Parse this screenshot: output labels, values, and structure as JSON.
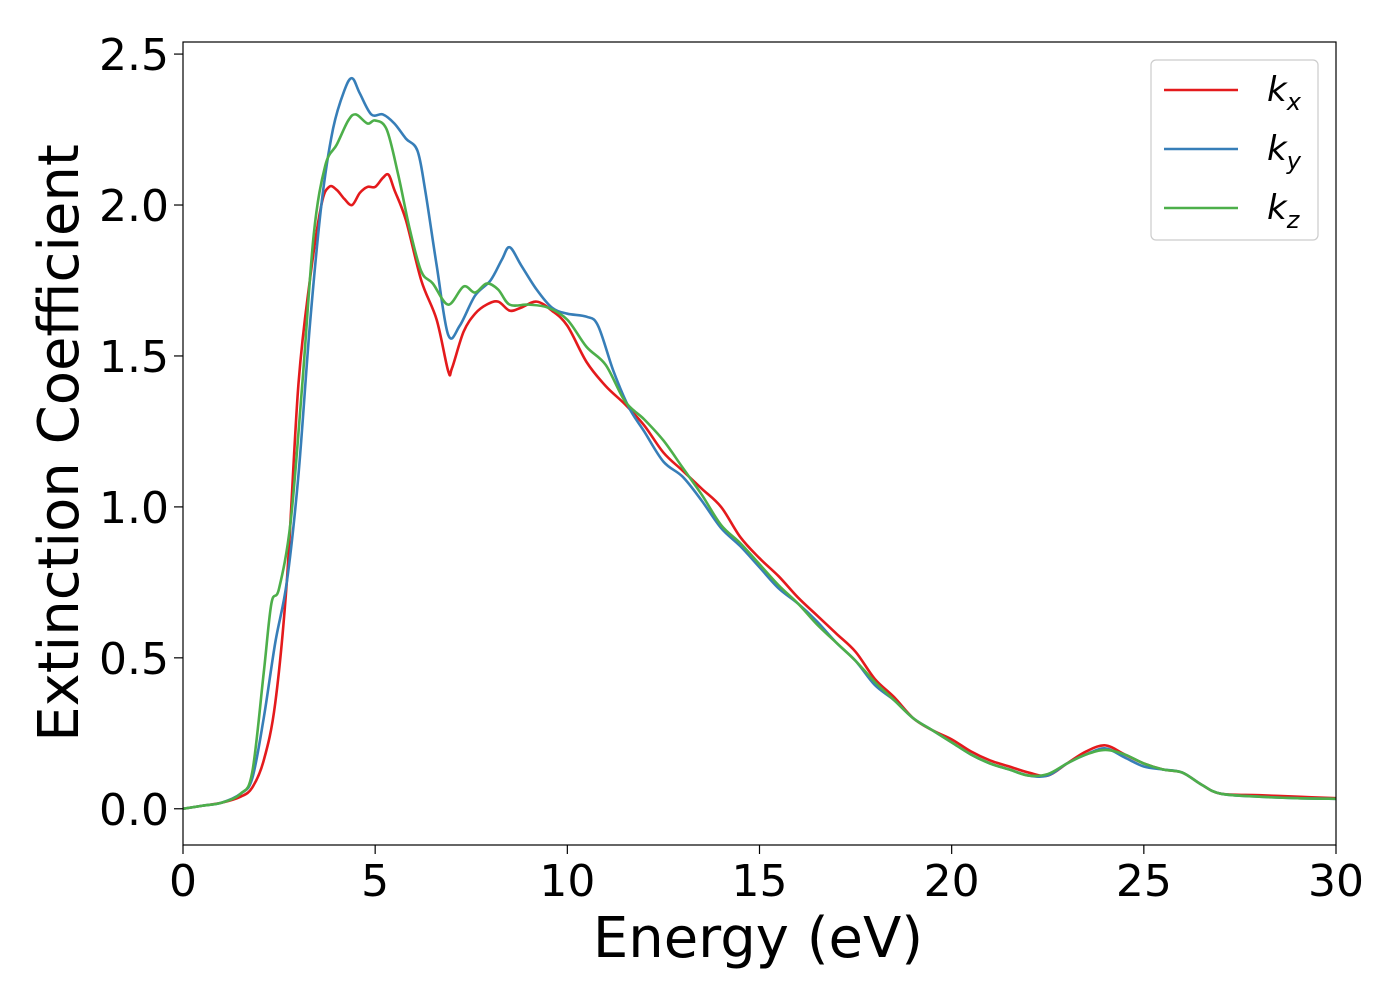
{
  "chart_data": {
    "type": "line",
    "title": "",
    "xlabel": "Energy (eV)",
    "ylabel": "Extinction Coefficient",
    "xlim": [
      0,
      30
    ],
    "ylim": [
      -0.12,
      2.54
    ],
    "xticks": [
      0,
      5,
      10,
      15,
      20,
      25,
      30
    ],
    "xtick_labels": [
      "0",
      "5",
      "10",
      "15",
      "20",
      "25",
      "30"
    ],
    "yticks": [
      0.0,
      0.5,
      1.0,
      1.5,
      2.0,
      2.5
    ],
    "ytick_labels": [
      "0.0",
      "0.5",
      "1.0",
      "1.5",
      "2.0",
      "2.5"
    ],
    "grid": false,
    "legend_position": "top-right",
    "series": [
      {
        "name": "k_x",
        "label_main": "k",
        "label_sub": "x",
        "color": "#e41a1c",
        "points": [
          [
            0,
            0.0
          ],
          [
            0.5,
            0.01
          ],
          [
            1,
            0.02
          ],
          [
            1.5,
            0.04
          ],
          [
            1.8,
            0.07
          ],
          [
            2.1,
            0.16
          ],
          [
            2.4,
            0.35
          ],
          [
            2.7,
            0.75
          ],
          [
            3.0,
            1.4
          ],
          [
            3.3,
            1.75
          ],
          [
            3.6,
            2.0
          ],
          [
            3.8,
            2.06
          ],
          [
            4.0,
            2.05
          ],
          [
            4.2,
            2.02
          ],
          [
            4.4,
            2.0
          ],
          [
            4.6,
            2.04
          ],
          [
            4.8,
            2.06
          ],
          [
            5.0,
            2.06
          ],
          [
            5.2,
            2.09
          ],
          [
            5.35,
            2.1
          ],
          [
            5.5,
            2.05
          ],
          [
            5.8,
            1.95
          ],
          [
            6.2,
            1.75
          ],
          [
            6.6,
            1.62
          ],
          [
            6.9,
            1.45
          ],
          [
            7.0,
            1.46
          ],
          [
            7.3,
            1.58
          ],
          [
            7.6,
            1.64
          ],
          [
            7.9,
            1.67
          ],
          [
            8.2,
            1.68
          ],
          [
            8.5,
            1.65
          ],
          [
            8.8,
            1.66
          ],
          [
            9.2,
            1.68
          ],
          [
            9.6,
            1.65
          ],
          [
            10.0,
            1.6
          ],
          [
            10.5,
            1.48
          ],
          [
            11.0,
            1.4
          ],
          [
            11.5,
            1.34
          ],
          [
            12.0,
            1.27
          ],
          [
            12.5,
            1.18
          ],
          [
            13.0,
            1.12
          ],
          [
            13.5,
            1.06
          ],
          [
            14.0,
            1.0
          ],
          [
            14.5,
            0.9
          ],
          [
            15.0,
            0.83
          ],
          [
            15.5,
            0.77
          ],
          [
            16.0,
            0.7
          ],
          [
            16.5,
            0.64
          ],
          [
            17.0,
            0.58
          ],
          [
            17.5,
            0.52
          ],
          [
            18.0,
            0.43
          ],
          [
            18.5,
            0.37
          ],
          [
            19.0,
            0.3
          ],
          [
            19.5,
            0.26
          ],
          [
            20.0,
            0.23
          ],
          [
            20.5,
            0.19
          ],
          [
            21.0,
            0.16
          ],
          [
            21.5,
            0.14
          ],
          [
            22.0,
            0.12
          ],
          [
            22.5,
            0.11
          ],
          [
            23.0,
            0.15
          ],
          [
            23.5,
            0.19
          ],
          [
            24.0,
            0.21
          ],
          [
            24.5,
            0.18
          ],
          [
            25.0,
            0.15
          ],
          [
            25.5,
            0.13
          ],
          [
            26.0,
            0.12
          ],
          [
            26.5,
            0.08
          ],
          [
            27.0,
            0.05
          ],
          [
            28.0,
            0.045
          ],
          [
            29.0,
            0.04
          ],
          [
            30.0,
            0.035
          ]
        ]
      },
      {
        "name": "k_y",
        "label_main": "k",
        "label_sub": "y",
        "color": "#377eb8",
        "points": [
          [
            0,
            0.0
          ],
          [
            0.5,
            0.01
          ],
          [
            1,
            0.02
          ],
          [
            1.5,
            0.05
          ],
          [
            1.8,
            0.1
          ],
          [
            2.1,
            0.3
          ],
          [
            2.4,
            0.55
          ],
          [
            2.7,
            0.75
          ],
          [
            3.0,
            1.1
          ],
          [
            3.3,
            1.6
          ],
          [
            3.6,
            2.0
          ],
          [
            3.9,
            2.25
          ],
          [
            4.2,
            2.38
          ],
          [
            4.4,
            2.42
          ],
          [
            4.6,
            2.37
          ],
          [
            4.9,
            2.3
          ],
          [
            5.2,
            2.3
          ],
          [
            5.5,
            2.27
          ],
          [
            5.8,
            2.22
          ],
          [
            6.1,
            2.18
          ],
          [
            6.3,
            2.05
          ],
          [
            6.6,
            1.8
          ],
          [
            6.9,
            1.57
          ],
          [
            7.2,
            1.6
          ],
          [
            7.6,
            1.7
          ],
          [
            8.0,
            1.75
          ],
          [
            8.3,
            1.82
          ],
          [
            8.5,
            1.86
          ],
          [
            8.8,
            1.8
          ],
          [
            9.2,
            1.72
          ],
          [
            9.6,
            1.66
          ],
          [
            10.0,
            1.64
          ],
          [
            10.5,
            1.63
          ],
          [
            10.8,
            1.6
          ],
          [
            11.2,
            1.45
          ],
          [
            11.6,
            1.33
          ],
          [
            12.0,
            1.25
          ],
          [
            12.5,
            1.15
          ],
          [
            13.0,
            1.1
          ],
          [
            13.5,
            1.02
          ],
          [
            14.0,
            0.93
          ],
          [
            14.5,
            0.87
          ],
          [
            15.0,
            0.8
          ],
          [
            15.5,
            0.73
          ],
          [
            16.0,
            0.68
          ],
          [
            16.5,
            0.62
          ],
          [
            17.0,
            0.55
          ],
          [
            17.5,
            0.49
          ],
          [
            18.0,
            0.41
          ],
          [
            18.5,
            0.36
          ],
          [
            19.0,
            0.3
          ],
          [
            19.5,
            0.26
          ],
          [
            20.0,
            0.22
          ],
          [
            20.5,
            0.18
          ],
          [
            21.0,
            0.15
          ],
          [
            21.5,
            0.13
          ],
          [
            22.0,
            0.11
          ],
          [
            22.5,
            0.11
          ],
          [
            23.0,
            0.15
          ],
          [
            23.5,
            0.18
          ],
          [
            24.0,
            0.2
          ],
          [
            24.5,
            0.17
          ],
          [
            25.0,
            0.14
          ],
          [
            25.5,
            0.13
          ],
          [
            26.0,
            0.12
          ],
          [
            26.5,
            0.08
          ],
          [
            27.0,
            0.05
          ],
          [
            28.0,
            0.04
          ],
          [
            29.0,
            0.035
          ],
          [
            30.0,
            0.033
          ]
        ]
      },
      {
        "name": "k_z",
        "label_main": "k",
        "label_sub": "z",
        "color": "#4daf4a",
        "points": [
          [
            0,
            0.0
          ],
          [
            0.5,
            0.01
          ],
          [
            1,
            0.02
          ],
          [
            1.5,
            0.05
          ],
          [
            1.8,
            0.12
          ],
          [
            2.1,
            0.45
          ],
          [
            2.3,
            0.68
          ],
          [
            2.5,
            0.73
          ],
          [
            2.8,
            0.95
          ],
          [
            3.1,
            1.4
          ],
          [
            3.4,
            1.9
          ],
          [
            3.7,
            2.13
          ],
          [
            4.0,
            2.2
          ],
          [
            4.3,
            2.28
          ],
          [
            4.5,
            2.3
          ],
          [
            4.8,
            2.27
          ],
          [
            5.0,
            2.28
          ],
          [
            5.3,
            2.25
          ],
          [
            5.6,
            2.1
          ],
          [
            5.9,
            1.92
          ],
          [
            6.2,
            1.78
          ],
          [
            6.5,
            1.74
          ],
          [
            6.9,
            1.67
          ],
          [
            7.3,
            1.73
          ],
          [
            7.6,
            1.71
          ],
          [
            7.9,
            1.74
          ],
          [
            8.2,
            1.72
          ],
          [
            8.5,
            1.67
          ],
          [
            9.0,
            1.67
          ],
          [
            9.5,
            1.66
          ],
          [
            10.0,
            1.62
          ],
          [
            10.5,
            1.53
          ],
          [
            11.0,
            1.47
          ],
          [
            11.5,
            1.35
          ],
          [
            12.0,
            1.29
          ],
          [
            12.5,
            1.22
          ],
          [
            13.0,
            1.13
          ],
          [
            13.5,
            1.04
          ],
          [
            14.0,
            0.94
          ],
          [
            14.5,
            0.88
          ],
          [
            15.0,
            0.81
          ],
          [
            15.5,
            0.74
          ],
          [
            16.0,
            0.68
          ],
          [
            16.5,
            0.61
          ],
          [
            17.0,
            0.55
          ],
          [
            17.5,
            0.49
          ],
          [
            18.0,
            0.42
          ],
          [
            18.5,
            0.36
          ],
          [
            19.0,
            0.3
          ],
          [
            19.5,
            0.26
          ],
          [
            20.0,
            0.22
          ],
          [
            20.5,
            0.18
          ],
          [
            21.0,
            0.15
          ],
          [
            21.5,
            0.13
          ],
          [
            22.0,
            0.11
          ],
          [
            22.5,
            0.115
          ],
          [
            23.0,
            0.15
          ],
          [
            23.5,
            0.18
          ],
          [
            24.0,
            0.195
          ],
          [
            24.5,
            0.18
          ],
          [
            25.0,
            0.15
          ],
          [
            25.5,
            0.13
          ],
          [
            26.0,
            0.12
          ],
          [
            26.5,
            0.08
          ],
          [
            27.0,
            0.05
          ],
          [
            28.0,
            0.04
          ],
          [
            29.0,
            0.035
          ],
          [
            30.0,
            0.033
          ]
        ]
      }
    ]
  }
}
